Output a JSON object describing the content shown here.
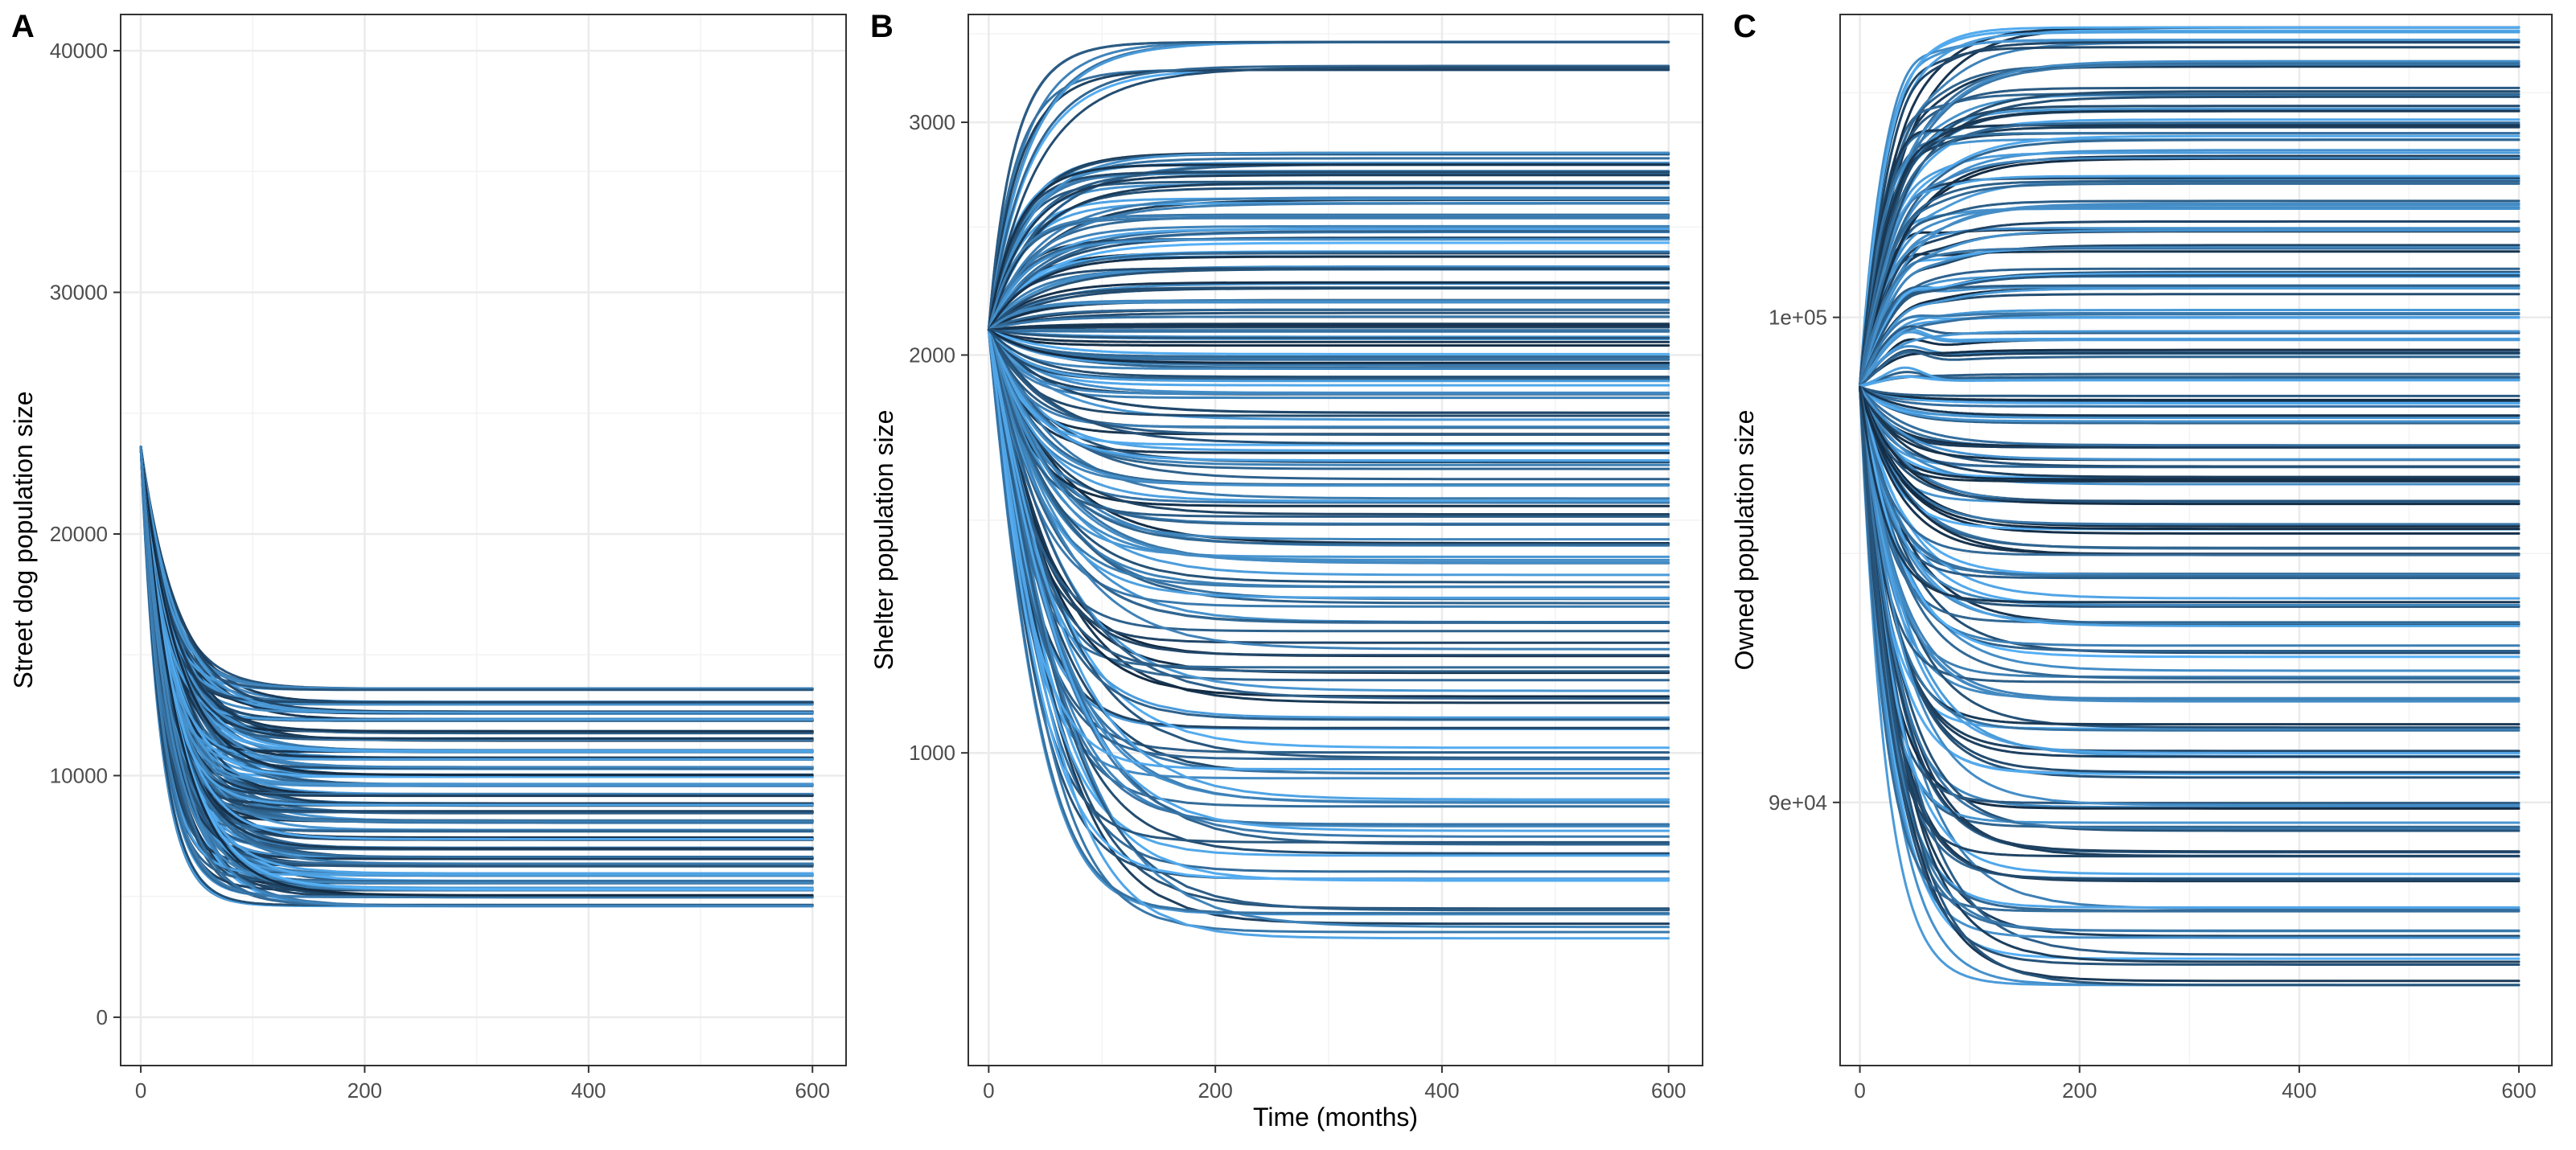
{
  "figure": {
    "panels": [
      "A",
      "B",
      "C"
    ]
  },
  "colors": {
    "dark": "#132B43",
    "light": "#56B1F7",
    "grid": "#ebebeb",
    "border": "#333333"
  },
  "chart_data": [
    {
      "panel": "A",
      "type": "line",
      "title": "",
      "xlabel": "",
      "ylabel": "Street dog population size",
      "xlim": [
        -18,
        630
      ],
      "ylim": [
        -2000,
        41500
      ],
      "xticks": [
        0,
        200,
        400,
        600
      ],
      "xtick_labels": [
        "0",
        "200",
        "400",
        "600"
      ],
      "yticks": [
        0,
        10000,
        20000,
        30000,
        40000
      ],
      "ytick_labels": [
        "0",
        "10000",
        "20000",
        "30000",
        "40000"
      ],
      "grid": true,
      "scale": "linear",
      "series_model": {
        "x_range": [
          0,
          600
        ],
        "start": 23600,
        "equilibrium_range": [
          4600,
          13600
        ],
        "equilibria_sample": [
          13600,
          13000,
          12600,
          12300,
          11800,
          11500,
          11000,
          10700,
          10300,
          10000,
          9600,
          9200,
          8800,
          8500,
          8100,
          7700,
          7400,
          7000,
          6600,
          6300,
          5900,
          5600,
          5300,
          5000,
          4600
        ],
        "approx_time_to_plateau": 100,
        "series_count_approx": 200
      }
    },
    {
      "panel": "B",
      "type": "line",
      "title": "",
      "xlabel": "Time (months)",
      "ylabel": "Shelter population size",
      "xlim": [
        -18,
        630
      ],
      "ylim": [
        580,
        3620
      ],
      "xticks": [
        0,
        200,
        400,
        600
      ],
      "xtick_labels": [
        "0",
        "200",
        "400",
        "600"
      ],
      "yticks": [
        1000,
        2000,
        3000
      ],
      "ytick_labels": [
        "1000",
        "2000",
        "3000"
      ],
      "grid": true,
      "scale": "log",
      "series_model": {
        "x_range": [
          0,
          600
        ],
        "start": 2090,
        "equilibrium_range": [
          720,
          3450
        ],
        "equilibria_sample": [
          3450,
          3300,
          2830,
          2800,
          2750,
          2690,
          2620,
          2540,
          2490,
          2440,
          2380,
          2320,
          2260,
          2200,
          2150,
          2100,
          2050,
          2000,
          1960,
          1910,
          1860,
          1800,
          1750,
          1700,
          1650,
          1600,
          1550,
          1500,
          1450,
          1400,
          1350,
          1300,
          1250,
          1200,
          1150,
          1100,
          1050,
          1000,
          960,
          920,
          880,
          850,
          810,
          770,
          730
        ],
        "approx_time_to_plateau": 150,
        "series_count_approx": 200
      }
    },
    {
      "panel": "C",
      "type": "line",
      "title": "",
      "xlabel": "",
      "ylabel": "Owned population size",
      "xlim": [
        -18,
        630
      ],
      "ylim": [
        85000,
        106800
      ],
      "xticks": [
        0,
        200,
        400,
        600
      ],
      "xtick_labels": [
        "0",
        "200",
        "400",
        "600"
      ],
      "yticks": [
        90000,
        100000
      ],
      "ytick_labels": [
        "9e+04",
        "1e+05"
      ],
      "grid": true,
      "scale": "log",
      "series_model": {
        "x_range": [
          0,
          600
        ],
        "start": 98500,
        "equilibrium_range": [
          86500,
          106500
        ],
        "equilibria_sample": [
          106500,
          106100,
          105700,
          105000,
          104700,
          104300,
          104000,
          103600,
          103000,
          102500,
          102000,
          101500,
          101000,
          100600,
          100100,
          99600,
          99200,
          98700,
          98200,
          97800,
          97300,
          96900,
          96500,
          96000,
          95500,
          95000,
          94500,
          94000,
          93500,
          93000,
          92500,
          92000,
          91500,
          91000,
          90500,
          90000,
          89500,
          89000,
          88500,
          88000,
          87500,
          87000,
          86500
        ],
        "approx_time_to_plateau": 120,
        "series_count_approx": 200
      }
    }
  ]
}
